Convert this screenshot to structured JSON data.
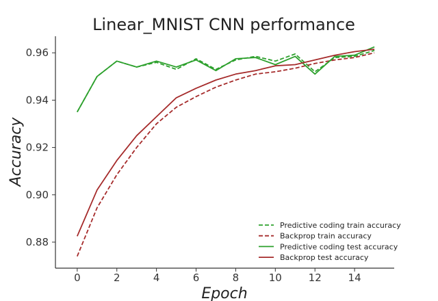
{
  "chart_data": {
    "type": "line",
    "title": "Linear_MNIST CNN performance",
    "xlabel": "Epoch",
    "ylabel": "Accuracy",
    "xlim": [
      -1.1,
      16.0
    ],
    "ylim": [
      0.869,
      0.967
    ],
    "xticks": [
      0,
      2,
      4,
      6,
      8,
      10,
      12,
      14
    ],
    "yticks": [
      0.88,
      0.9,
      0.92,
      0.94,
      0.96
    ],
    "ytick_labels": [
      "0.88",
      "0.90",
      "0.92",
      "0.94",
      "0.96"
    ],
    "legend_position": "lower-right",
    "grid": false,
    "x": [
      0,
      1,
      2,
      3,
      4,
      5,
      6,
      7,
      8,
      9,
      10,
      11,
      12,
      13,
      14,
      15
    ],
    "series": [
      {
        "name": "Predictive coding train accuracy",
        "color": "#2ca02c",
        "dash": "dashed",
        "values": [
          0.935,
          0.95,
          0.9565,
          0.954,
          0.956,
          0.953,
          0.9575,
          0.953,
          0.957,
          0.9585,
          0.9565,
          0.9595,
          0.952,
          0.958,
          0.9585,
          0.961
        ]
      },
      {
        "name": "Backprop train accuracy",
        "color": "#a52a2a",
        "dash": "dashed",
        "values": [
          0.874,
          0.8945,
          0.9085,
          0.92,
          0.93,
          0.937,
          0.9415,
          0.9455,
          0.9485,
          0.951,
          0.952,
          0.9535,
          0.9555,
          0.957,
          0.958,
          0.96
        ]
      },
      {
        "name": "Predictive coding test accuracy",
        "color": "#2ca02c",
        "dash": "solid",
        "values": [
          0.935,
          0.95,
          0.9565,
          0.954,
          0.9565,
          0.954,
          0.957,
          0.9525,
          0.9575,
          0.958,
          0.955,
          0.9585,
          0.951,
          0.9585,
          0.959,
          0.9625
        ]
      },
      {
        "name": "Backprop test accuracy",
        "color": "#a52a2a",
        "dash": "solid",
        "values": [
          0.8825,
          0.902,
          0.9145,
          0.925,
          0.933,
          0.941,
          0.945,
          0.9485,
          0.951,
          0.9525,
          0.9545,
          0.955,
          0.957,
          0.959,
          0.9605,
          0.9615
        ]
      }
    ]
  }
}
